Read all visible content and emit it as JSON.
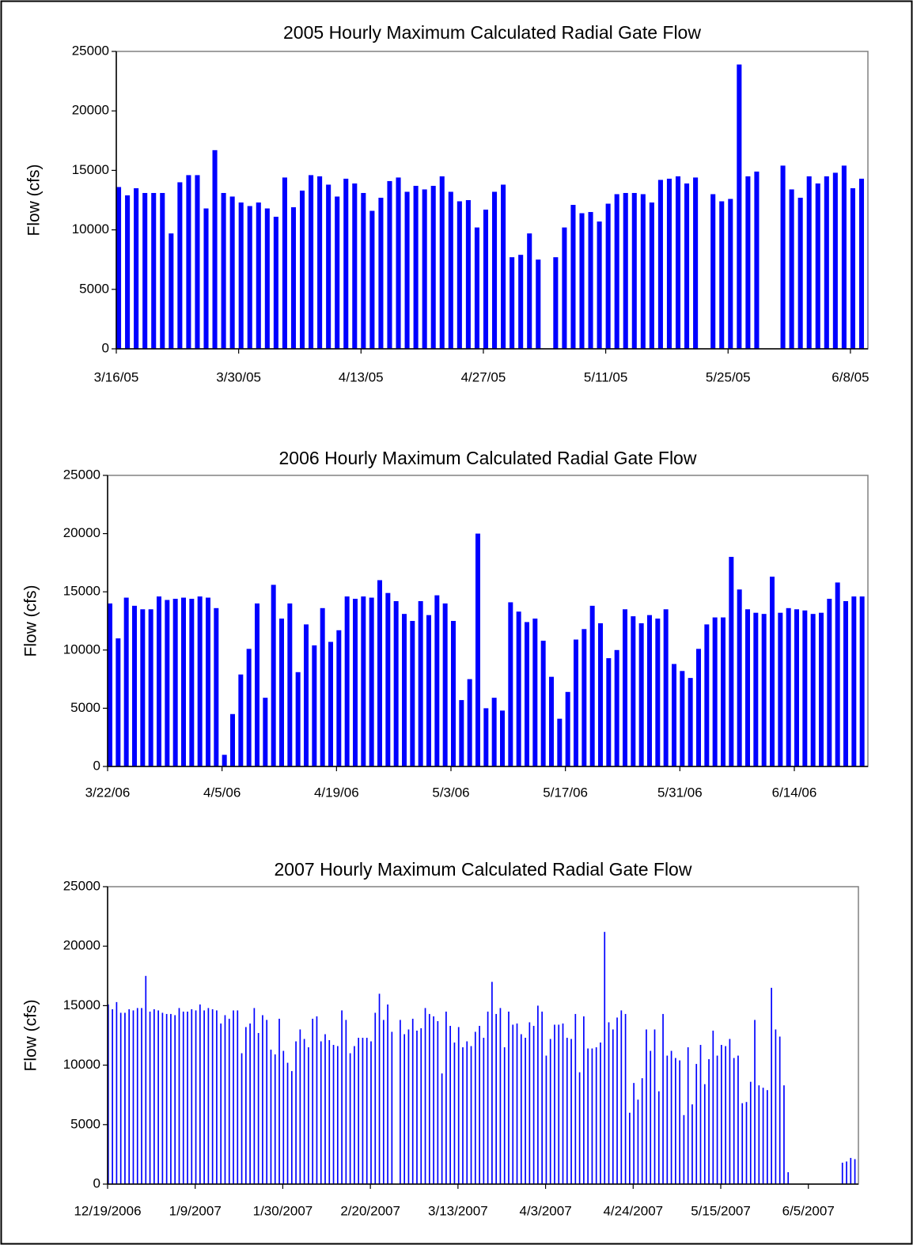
{
  "chart_data": [
    {
      "type": "bar",
      "title": "2005 Hourly Maximum Calculated Radial Gate Flow",
      "y_label": "Flow (cfs)",
      "color": "#0000ff",
      "xlim": [
        "2005-03-16",
        "2005-06-10"
      ],
      "ylim": [
        0,
        25000
      ],
      "yticks": [
        0,
        5000,
        10000,
        15000,
        20000,
        25000
      ],
      "xticks": [
        {
          "value": "2005-03-16",
          "label": "3/16/05"
        },
        {
          "value": "2005-03-30",
          "label": "3/30/05"
        },
        {
          "value": "2005-04-13",
          "label": "4/13/05"
        },
        {
          "value": "2005-04-27",
          "label": "4/27/05"
        },
        {
          "value": "2005-05-11",
          "label": "5/11/05"
        },
        {
          "value": "2005-05-25",
          "label": "5/25/05"
        },
        {
          "value": "2005-06-08",
          "label": "6/8/05"
        }
      ],
      "x": [
        "2005-03-16",
        "2005-03-17",
        "2005-03-18",
        "2005-03-19",
        "2005-03-20",
        "2005-03-21",
        "2005-03-22",
        "2005-03-23",
        "2005-03-24",
        "2005-03-25",
        "2005-03-26",
        "2005-03-27",
        "2005-03-28",
        "2005-03-29",
        "2005-03-30",
        "2005-03-31",
        "2005-04-01",
        "2005-04-02",
        "2005-04-03",
        "2005-04-04",
        "2005-04-05",
        "2005-04-06",
        "2005-04-07",
        "2005-04-08",
        "2005-04-09",
        "2005-04-10",
        "2005-04-11",
        "2005-04-12",
        "2005-04-13",
        "2005-04-14",
        "2005-04-15",
        "2005-04-16",
        "2005-04-17",
        "2005-04-18",
        "2005-04-19",
        "2005-04-20",
        "2005-04-21",
        "2005-04-22",
        "2005-04-23",
        "2005-04-24",
        "2005-04-25",
        "2005-04-26",
        "2005-04-27",
        "2005-04-28",
        "2005-04-29",
        "2005-04-30",
        "2005-05-01",
        "2005-05-02",
        "2005-05-03",
        "2005-05-05",
        "2005-05-06",
        "2005-05-07",
        "2005-05-08",
        "2005-05-09",
        "2005-05-10",
        "2005-05-11",
        "2005-05-12",
        "2005-05-13",
        "2005-05-14",
        "2005-05-15",
        "2005-05-16",
        "2005-05-17",
        "2005-05-18",
        "2005-05-19",
        "2005-05-20",
        "2005-05-21",
        "2005-05-23",
        "2005-05-24",
        "2005-05-25",
        "2005-05-26",
        "2005-05-27",
        "2005-05-28",
        "2005-05-31",
        "2005-06-01",
        "2005-06-02",
        "2005-06-03",
        "2005-06-04",
        "2005-06-05",
        "2005-06-06",
        "2005-06-07",
        "2005-06-08",
        "2005-06-09"
      ],
      "values": [
        13600,
        12900,
        13500,
        13100,
        13100,
        13100,
        9700,
        14000,
        14600,
        14600,
        11800,
        16700,
        13100,
        12800,
        12300,
        12000,
        12300,
        11800,
        11100,
        14400,
        11900,
        13300,
        14600,
        14500,
        13800,
        12800,
        14300,
        13900,
        13100,
        11600,
        12700,
        14100,
        14400,
        13200,
        13700,
        13400,
        13700,
        14500,
        13200,
        12400,
        12500,
        10200,
        11700,
        13200,
        13800,
        7700,
        7900,
        9700,
        7500,
        7700,
        10200,
        12100,
        11400,
        11500,
        10700,
        12200,
        13000,
        13100,
        13100,
        13000,
        12300,
        14200,
        14300,
        14500,
        13900,
        14400,
        13000,
        12400,
        12600,
        23900,
        14500,
        14900,
        15400,
        13400,
        12700,
        14500,
        13900,
        14500,
        14800,
        15400,
        13500,
        14300
      ]
    },
    {
      "type": "bar",
      "title": "2006 Hourly Maximum Calculated Radial Gate Flow",
      "y_label": "Flow (cfs)",
      "color": "#0000ff",
      "xlim": [
        "2006-03-22",
        "2006-06-23"
      ],
      "ylim": [
        0,
        25000
      ],
      "yticks": [
        0,
        5000,
        10000,
        15000,
        20000,
        25000
      ],
      "xticks": [
        {
          "value": "2006-03-22",
          "label": "3/22/06"
        },
        {
          "value": "2006-04-05",
          "label": "4/5/06"
        },
        {
          "value": "2006-04-19",
          "label": "4/19/06"
        },
        {
          "value": "2006-05-03",
          "label": "5/3/06"
        },
        {
          "value": "2006-05-17",
          "label": "5/17/06"
        },
        {
          "value": "2006-05-31",
          "label": "5/31/06"
        },
        {
          "value": "2006-06-14",
          "label": "6/14/06"
        }
      ],
      "x": [
        "2006-03-22",
        "2006-03-23",
        "2006-03-24",
        "2006-03-25",
        "2006-03-26",
        "2006-03-27",
        "2006-03-28",
        "2006-03-29",
        "2006-03-30",
        "2006-03-31",
        "2006-04-01",
        "2006-04-02",
        "2006-04-03",
        "2006-04-04",
        "2006-04-05",
        "2006-04-06",
        "2006-04-07",
        "2006-04-08",
        "2006-04-09",
        "2006-04-10",
        "2006-04-11",
        "2006-04-12",
        "2006-04-13",
        "2006-04-14",
        "2006-04-15",
        "2006-04-16",
        "2006-04-17",
        "2006-04-18",
        "2006-04-19",
        "2006-04-20",
        "2006-04-21",
        "2006-04-22",
        "2006-04-23",
        "2006-04-24",
        "2006-04-25",
        "2006-04-26",
        "2006-04-27",
        "2006-04-28",
        "2006-04-29",
        "2006-04-30",
        "2006-05-01",
        "2006-05-02",
        "2006-05-03",
        "2006-05-04",
        "2006-05-05",
        "2006-05-06",
        "2006-05-07",
        "2006-05-08",
        "2006-05-09",
        "2006-05-10",
        "2006-05-11",
        "2006-05-12",
        "2006-05-13",
        "2006-05-14",
        "2006-05-15",
        "2006-05-16",
        "2006-05-17",
        "2006-05-18",
        "2006-05-19",
        "2006-05-20",
        "2006-05-21",
        "2006-05-22",
        "2006-05-23",
        "2006-05-24",
        "2006-05-25",
        "2006-05-26",
        "2006-05-27",
        "2006-05-28",
        "2006-05-29",
        "2006-05-30",
        "2006-05-31",
        "2006-06-01",
        "2006-06-02",
        "2006-06-03",
        "2006-06-04",
        "2006-06-05",
        "2006-06-06",
        "2006-06-07",
        "2006-06-08",
        "2006-06-09",
        "2006-06-10",
        "2006-06-11",
        "2006-06-12",
        "2006-06-13",
        "2006-06-14",
        "2006-06-15",
        "2006-06-16",
        "2006-06-17",
        "2006-06-18",
        "2006-06-19",
        "2006-06-20",
        "2006-06-21",
        "2006-06-22"
      ],
      "values": [
        14000,
        11000,
        14500,
        13800,
        13500,
        13500,
        14600,
        14300,
        14400,
        14500,
        14400,
        14600,
        14500,
        13600,
        1000,
        4500,
        7900,
        10100,
        14000,
        5900,
        15600,
        12700,
        14000,
        8100,
        12200,
        10400,
        13600,
        10700,
        11700,
        14600,
        14400,
        14600,
        14500,
        16000,
        14900,
        14200,
        13100,
        12500,
        14200,
        13000,
        14700,
        14000,
        12500,
        5700,
        7500,
        20000,
        5000,
        5900,
        4800,
        14100,
        13300,
        12400,
        12700,
        10800,
        7700,
        4100,
        6400,
        10900,
        11800,
        13800,
        12300,
        9300,
        10000,
        13500,
        12900,
        12300,
        13000,
        12700,
        13500,
        8800,
        8200,
        7600,
        10100,
        12200,
        12800,
        12800,
        18000,
        15200,
        13500,
        13200,
        13100,
        16300,
        13200,
        13600,
        13500,
        13400,
        13100,
        13200,
        14400,
        15800,
        14200,
        14600,
        14600
      ]
    },
    {
      "type": "bar",
      "title": "2007 Hourly Maximum Calculated Radial Gate Flow",
      "y_label": "Flow (cfs)",
      "color": "#0000ff",
      "xlim": [
        "2006-12-19",
        "2007-06-17"
      ],
      "ylim": [
        0,
        25000
      ],
      "yticks": [
        0,
        5000,
        10000,
        15000,
        20000,
        25000
      ],
      "xticks": [
        {
          "value": "2006-12-19",
          "label": "12/19/2006"
        },
        {
          "value": "2007-01-09",
          "label": "1/9/2007"
        },
        {
          "value": "2007-01-30",
          "label": "1/30/2007"
        },
        {
          "value": "2007-02-20",
          "label": "2/20/2007"
        },
        {
          "value": "2007-03-13",
          "label": "3/13/2007"
        },
        {
          "value": "2007-04-03",
          "label": "4/3/2007"
        },
        {
          "value": "2007-04-24",
          "label": "4/24/2007"
        },
        {
          "value": "2007-05-15",
          "label": "5/15/2007"
        },
        {
          "value": "2007-06-05",
          "label": "6/5/2007"
        }
      ],
      "x": [
        "2006-12-19",
        "2006-12-20",
        "2006-12-21",
        "2006-12-22",
        "2006-12-23",
        "2006-12-24",
        "2006-12-25",
        "2006-12-26",
        "2006-12-27",
        "2006-12-28",
        "2006-12-29",
        "2006-12-30",
        "2006-12-31",
        "2007-01-01",
        "2007-01-02",
        "2007-01-03",
        "2007-01-04",
        "2007-01-05",
        "2007-01-06",
        "2007-01-07",
        "2007-01-08",
        "2007-01-09",
        "2007-01-10",
        "2007-01-11",
        "2007-01-12",
        "2007-01-13",
        "2007-01-14",
        "2007-01-15",
        "2007-01-16",
        "2007-01-17",
        "2007-01-18",
        "2007-01-19",
        "2007-01-20",
        "2007-01-21",
        "2007-01-22",
        "2007-01-23",
        "2007-01-24",
        "2007-01-25",
        "2007-01-26",
        "2007-01-27",
        "2007-01-28",
        "2007-01-29",
        "2007-01-30",
        "2007-01-31",
        "2007-02-01",
        "2007-02-02",
        "2007-02-03",
        "2007-02-04",
        "2007-02-05",
        "2007-02-06",
        "2007-02-07",
        "2007-02-08",
        "2007-02-09",
        "2007-02-10",
        "2007-02-11",
        "2007-02-12",
        "2007-02-13",
        "2007-02-14",
        "2007-02-15",
        "2007-02-16",
        "2007-02-17",
        "2007-02-18",
        "2007-02-19",
        "2007-02-20",
        "2007-02-21",
        "2007-02-22",
        "2007-02-23",
        "2007-02-24",
        "2007-02-25",
        "2007-02-27",
        "2007-02-28",
        "2007-03-01",
        "2007-03-02",
        "2007-03-03",
        "2007-03-04",
        "2007-03-05",
        "2007-03-06",
        "2007-03-07",
        "2007-03-08",
        "2007-03-09",
        "2007-03-10",
        "2007-03-11",
        "2007-03-12",
        "2007-03-13",
        "2007-03-14",
        "2007-03-15",
        "2007-03-16",
        "2007-03-17",
        "2007-03-18",
        "2007-03-19",
        "2007-03-20",
        "2007-03-21",
        "2007-03-22",
        "2007-03-23",
        "2007-03-24",
        "2007-03-25",
        "2007-03-26",
        "2007-03-27",
        "2007-03-28",
        "2007-03-29",
        "2007-03-30",
        "2007-03-31",
        "2007-04-01",
        "2007-04-02",
        "2007-04-03",
        "2007-04-04",
        "2007-04-05",
        "2007-04-06",
        "2007-04-07",
        "2007-04-08",
        "2007-04-09",
        "2007-04-10",
        "2007-04-11",
        "2007-04-12",
        "2007-04-13",
        "2007-04-14",
        "2007-04-15",
        "2007-04-16",
        "2007-04-17",
        "2007-04-18",
        "2007-04-19",
        "2007-04-20",
        "2007-04-21",
        "2007-04-22",
        "2007-04-23",
        "2007-04-24",
        "2007-04-25",
        "2007-04-26",
        "2007-04-27",
        "2007-04-28",
        "2007-04-29",
        "2007-04-30",
        "2007-05-01",
        "2007-05-02",
        "2007-05-03",
        "2007-05-04",
        "2007-05-05",
        "2007-05-06",
        "2007-05-07",
        "2007-05-08",
        "2007-05-09",
        "2007-05-10",
        "2007-05-11",
        "2007-05-12",
        "2007-05-13",
        "2007-05-14",
        "2007-05-15",
        "2007-05-16",
        "2007-05-17",
        "2007-05-18",
        "2007-05-19",
        "2007-05-20",
        "2007-05-21",
        "2007-05-22",
        "2007-05-23",
        "2007-05-24",
        "2007-05-25",
        "2007-05-26",
        "2007-05-27",
        "2007-05-28",
        "2007-05-29",
        "2007-05-30",
        "2007-05-31",
        "2007-06-13",
        "2007-06-14",
        "2007-06-15",
        "2007-06-16"
      ],
      "values": [
        15100,
        14700,
        15300,
        14400,
        14400,
        14700,
        14600,
        14800,
        14800,
        17500,
        14500,
        14700,
        14600,
        14400,
        14300,
        14300,
        14200,
        14800,
        14500,
        14500,
        14700,
        14600,
        15100,
        14600,
        14800,
        14700,
        14600,
        13500,
        14200,
        13900,
        14600,
        14600,
        11000,
        13200,
        13500,
        14800,
        12700,
        14200,
        13800,
        11300,
        10900,
        13900,
        11200,
        10200,
        9500,
        12000,
        13000,
        12200,
        11500,
        13900,
        14100,
        12000,
        12600,
        12100,
        11700,
        11600,
        14600,
        13800,
        11000,
        11600,
        12300,
        12300,
        12300,
        12000,
        14400,
        16000,
        13800,
        15100,
        12800,
        13800,
        12600,
        13000,
        13900,
        12900,
        13100,
        14800,
        14300,
        14100,
        13700,
        9300,
        14500,
        13300,
        11900,
        13200,
        11500,
        12000,
        11600,
        12800,
        13300,
        12300,
        14500,
        17000,
        14300,
        14800,
        11500,
        14500,
        13400,
        13500,
        12600,
        12300,
        13600,
        13300,
        15000,
        14500,
        10800,
        12200,
        13400,
        13400,
        13500,
        12300,
        12200,
        14300,
        9400,
        14100,
        11400,
        11400,
        11500,
        11900,
        21200,
        13600,
        13000,
        14000,
        14600,
        14300,
        6000,
        8500,
        7100,
        8900,
        13000,
        11200,
        13000,
        7800,
        14300,
        10800,
        11200,
        10600,
        10400,
        5800,
        11500,
        6700,
        10100,
        11700,
        8400,
        10500,
        12900,
        10800,
        11700,
        11600,
        12200,
        10600,
        10800,
        6800,
        6900,
        8600,
        13800,
        8300,
        8100,
        7900,
        16500,
        13000,
        12400,
        8300,
        1000,
        1800,
        1900,
        2200,
        2100
      ]
    }
  ]
}
